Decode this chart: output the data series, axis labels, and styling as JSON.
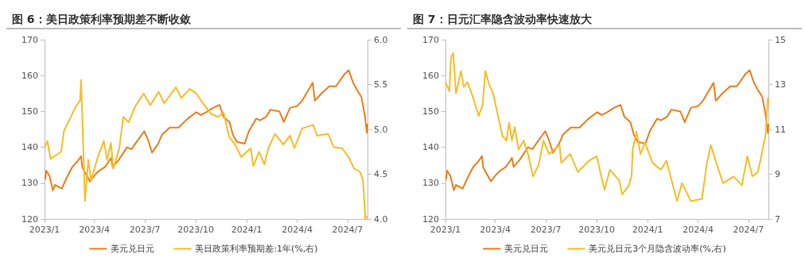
{
  "chart_data": [
    {
      "type": "line",
      "title": "图 6：美日政策利率预期差不断收敛",
      "legend": "bottom",
      "grid": false,
      "xlim": [
        "2023-01-01",
        "2024-08-06"
      ],
      "xticks": [
        {
          "value": "2023-01-01",
          "label": "2023/1"
        },
        {
          "value": "2023-04-01",
          "label": "2023/4"
        },
        {
          "value": "2023-07-01",
          "label": "2023/7"
        },
        {
          "value": "2023-10-01",
          "label": "2023/10"
        },
        {
          "value": "2024-01-01",
          "label": "2024/1"
        },
        {
          "value": "2024-04-01",
          "label": "2024/4"
        },
        {
          "value": "2024-07-01",
          "label": "2024/7"
        }
      ],
      "ylim": [
        120,
        170
      ],
      "yticks": [
        120,
        130,
        140,
        150,
        160,
        170
      ],
      "y2lim": [
        4,
        6
      ],
      "y2ticks": [
        {
          "value": 4,
          "label": "4.0"
        },
        {
          "value": 4.5,
          "label": "4.5"
        },
        {
          "value": 5,
          "label": "5.0"
        },
        {
          "value": 5.5,
          "label": "5.5"
        },
        {
          "value": 6,
          "label": "6.0"
        }
      ],
      "series": [
        {
          "name": "美元兑日元",
          "color": "#f07d1c",
          "x": [
            "2023-01-02",
            "2023-01-04",
            "2023-01-10",
            "2023-01-16",
            "2023-01-20",
            "2023-02-01",
            "2023-02-10",
            "2023-02-20",
            "2023-03-01",
            "2023-03-08",
            "2023-03-10",
            "2023-03-15",
            "2023-03-24",
            "2023-04-03",
            "2023-04-10",
            "2023-04-20",
            "2023-05-01",
            "2023-05-04",
            "2023-05-15",
            "2023-05-30",
            "2023-06-07",
            "2023-06-16",
            "2023-06-30",
            "2023-07-07",
            "2023-07-14",
            "2023-07-25",
            "2023-08-01",
            "2023-08-15",
            "2023-08-31",
            "2023-09-15",
            "2023-10-02",
            "2023-10-10",
            "2023-10-20",
            "2023-11-01",
            "2023-11-13",
            "2023-11-20",
            "2023-12-01",
            "2023-12-07",
            "2023-12-14",
            "2023-12-28",
            "2024-01-05",
            "2024-01-18",
            "2024-01-25",
            "2024-02-05",
            "2024-02-13",
            "2024-02-29",
            "2024-03-08",
            "2024-03-19",
            "2024-04-01",
            "2024-04-10",
            "2024-04-29",
            "2024-05-03",
            "2024-05-15",
            "2024-05-29",
            "2024-06-10",
            "2024-06-26",
            "2024-07-03",
            "2024-07-11",
            "2024-07-18",
            "2024-07-26",
            "2024-08-01",
            "2024-08-05",
            "2024-08-06"
          ],
          "values": [
            131,
            133.5,
            132,
            128,
            129.5,
            128.5,
            131.5,
            134.5,
            136,
            137.5,
            134.5,
            133,
            130.5,
            132.5,
            133.5,
            134.5,
            137,
            134.5,
            136.5,
            140,
            139.5,
            141.5,
            144.5,
            142,
            138.5,
            141,
            143.5,
            145.5,
            145.5,
            147.8,
            149.8,
            149,
            149.8,
            151,
            151.8,
            148.5,
            147,
            143.5,
            141.5,
            141,
            144.5,
            148,
            147.5,
            148.5,
            150.5,
            150,
            147,
            151,
            151.5,
            153,
            158,
            153,
            155,
            157,
            157,
            160.5,
            161.5,
            158,
            156,
            154,
            149,
            144,
            146.5
          ]
        },
        {
          "name": "美日政策利率预期差:1年(%,右)",
          "color": "#fbbc28",
          "axis": "y2",
          "x": [
            "2023-01-01",
            "2023-01-06",
            "2023-01-12",
            "2023-01-31",
            "2023-02-05",
            "2023-02-15",
            "2023-02-27",
            "2023-03-06",
            "2023-03-08",
            "2023-03-13",
            "2023-03-15",
            "2023-03-21",
            "2023-03-26",
            "2023-04-07",
            "2023-04-18",
            "2023-04-24",
            "2023-05-01",
            "2023-05-05",
            "2023-05-16",
            "2023-05-23",
            "2023-06-02",
            "2023-06-14",
            "2023-06-29",
            "2023-07-11",
            "2023-07-26",
            "2023-08-05",
            "2023-08-26",
            "2023-09-05",
            "2023-09-20",
            "2023-10-02",
            "2023-10-14",
            "2023-10-29",
            "2023-11-10",
            "2023-11-20",
            "2023-11-30",
            "2023-12-12",
            "2023-12-22",
            "2024-01-08",
            "2024-01-13",
            "2024-01-23",
            "2024-02-02",
            "2024-02-09",
            "2024-02-21",
            "2024-03-07",
            "2024-03-19",
            "2024-03-27",
            "2024-04-10",
            "2024-04-30",
            "2024-05-07",
            "2024-05-27",
            "2024-06-06",
            "2024-06-21",
            "2024-07-03",
            "2024-07-13",
            "2024-07-23",
            "2024-07-29",
            "2024-08-02",
            "2024-08-06"
          ],
          "values": [
            4.79,
            4.87,
            4.67,
            4.75,
            4.98,
            5.11,
            5.26,
            5.32,
            5.55,
            4.59,
            4.2,
            4.66,
            4.43,
            4.69,
            4.87,
            4.66,
            4.85,
            4.56,
            4.79,
            5.14,
            5.08,
            5.26,
            5.4,
            5.27,
            5.42,
            5.29,
            5.47,
            5.35,
            5.45,
            5.4,
            5.29,
            5.17,
            5.14,
            5.19,
            4.92,
            4.82,
            4.69,
            4.79,
            4.59,
            4.75,
            4.61,
            4.79,
            4.95,
            4.83,
            4.93,
            4.79,
            5.01,
            5.05,
            4.93,
            4.95,
            4.8,
            4.79,
            4.69,
            4.56,
            4.53,
            4.43,
            4.0,
            4.03
          ]
        }
      ]
    },
    {
      "type": "line",
      "title": "图 7：日元汇率隐含波动率快速放大",
      "legend": "bottom",
      "grid": false,
      "xlim": [
        "2023-01-01",
        "2024-08-06"
      ],
      "xticks": [
        {
          "value": "2023-01-01",
          "label": "2023/1"
        },
        {
          "value": "2023-04-01",
          "label": "2023/4"
        },
        {
          "value": "2023-07-01",
          "label": "2023/7"
        },
        {
          "value": "2023-10-01",
          "label": "2023/10"
        },
        {
          "value": "2024-01-01",
          "label": "2024/1"
        },
        {
          "value": "2024-04-01",
          "label": "2024/4"
        },
        {
          "value": "2024-07-01",
          "label": "2024/7"
        }
      ],
      "ylim": [
        120,
        170
      ],
      "yticks": [
        120,
        130,
        140,
        150,
        160,
        170
      ],
      "y2lim": [
        7,
        15
      ],
      "y2ticks": [
        7,
        9,
        11,
        13,
        15
      ],
      "series": [
        {
          "name": "美元兑日元",
          "color": "#f07d1c",
          "x": [
            "2023-01-02",
            "2023-01-04",
            "2023-01-10",
            "2023-01-16",
            "2023-01-20",
            "2023-02-01",
            "2023-02-10",
            "2023-02-20",
            "2023-03-01",
            "2023-03-08",
            "2023-03-10",
            "2023-03-15",
            "2023-03-24",
            "2023-04-03",
            "2023-04-10",
            "2023-04-20",
            "2023-05-01",
            "2023-05-04",
            "2023-05-15",
            "2023-05-30",
            "2023-06-07",
            "2023-06-16",
            "2023-06-30",
            "2023-07-07",
            "2023-07-14",
            "2023-07-25",
            "2023-08-01",
            "2023-08-15",
            "2023-08-31",
            "2023-09-15",
            "2023-10-02",
            "2023-10-10",
            "2023-10-20",
            "2023-11-01",
            "2023-11-13",
            "2023-11-20",
            "2023-12-01",
            "2023-12-07",
            "2023-12-14",
            "2023-12-28",
            "2024-01-05",
            "2024-01-18",
            "2024-01-25",
            "2024-02-05",
            "2024-02-13",
            "2024-02-29",
            "2024-03-08",
            "2024-03-19",
            "2024-04-01",
            "2024-04-10",
            "2024-04-29",
            "2024-05-03",
            "2024-05-15",
            "2024-05-29",
            "2024-06-10",
            "2024-06-26",
            "2024-07-03",
            "2024-07-11",
            "2024-07-18",
            "2024-07-26",
            "2024-08-01",
            "2024-08-05",
            "2024-08-06"
          ],
          "values": [
            131,
            133.5,
            132,
            128,
            129.5,
            128.5,
            131.5,
            134.5,
            136,
            137.5,
            134.5,
            133,
            130.5,
            132.5,
            133.5,
            134.5,
            137,
            134.5,
            136.5,
            140,
            139.5,
            141.5,
            144.5,
            142,
            138.5,
            141,
            143.5,
            145.5,
            145.5,
            147.8,
            149.8,
            149,
            149.8,
            151,
            151.8,
            148.5,
            147,
            143.5,
            141.5,
            141,
            144.5,
            148,
            147.5,
            148.5,
            150.5,
            150,
            147,
            151,
            151.5,
            153,
            158,
            153,
            155,
            157,
            157,
            160.5,
            161.5,
            158,
            156,
            154,
            149,
            144,
            146.5
          ]
        },
        {
          "name": "美元兑日元3个月隐含波动率(%,右)",
          "color": "#fbbc28",
          "axis": "y2",
          "x": [
            "2023-01-01",
            "2023-01-08",
            "2023-01-11",
            "2023-01-15",
            "2023-01-20",
            "2023-01-29",
            "2023-02-03",
            "2023-02-10",
            "2023-02-20",
            "2023-03-02",
            "2023-03-09",
            "2023-03-14",
            "2023-03-21",
            "2023-03-28",
            "2023-04-05",
            "2023-04-14",
            "2023-04-21",
            "2023-04-26",
            "2023-05-01",
            "2023-05-06",
            "2023-05-13",
            "2023-05-22",
            "2023-05-30",
            "2023-06-08",
            "2023-06-18",
            "2023-06-27",
            "2023-07-07",
            "2023-07-26",
            "2023-07-29",
            "2023-08-14",
            "2023-08-28",
            "2023-09-17",
            "2023-10-01",
            "2023-10-15",
            "2023-10-25",
            "2023-11-11",
            "2023-11-16",
            "2023-11-28",
            "2023-12-03",
            "2023-12-05",
            "2023-12-12",
            "2023-12-19",
            "2023-12-27",
            "2024-01-10",
            "2024-01-25",
            "2024-02-04",
            "2024-02-23",
            "2024-03-03",
            "2024-03-19",
            "2024-04-08",
            "2024-04-17",
            "2024-04-24",
            "2024-05-04",
            "2024-05-16",
            "2024-06-04",
            "2024-06-19",
            "2024-06-29",
            "2024-07-08",
            "2024-07-18",
            "2024-07-25",
            "2024-08-01",
            "2024-08-05",
            "2024-08-06"
          ],
          "values": [
            13.1,
            12.7,
            14.2,
            14.4,
            12.6,
            13.6,
            12.9,
            13.1,
            12.4,
            11.6,
            12.1,
            13.6,
            13,
            12.6,
            11.7,
            10.7,
            10.5,
            11.3,
            10.5,
            11.1,
            10.1,
            10.5,
            9.9,
            8.9,
            9.4,
            10.5,
            9.9,
            10.3,
            9.5,
            9.9,
            9.1,
            9.6,
            9.8,
            8.3,
            9.2,
            8.7,
            8.1,
            8.5,
            8.9,
            10.1,
            10.9,
            9.9,
            10.4,
            9.5,
            9.2,
            9.6,
            7.8,
            8.6,
            7.8,
            7.9,
            9.5,
            10.3,
            9.5,
            8.6,
            8.9,
            8.5,
            9.8,
            8.9,
            9.1,
            9.9,
            10.8,
            12.4,
            12.1
          ]
        }
      ]
    }
  ]
}
